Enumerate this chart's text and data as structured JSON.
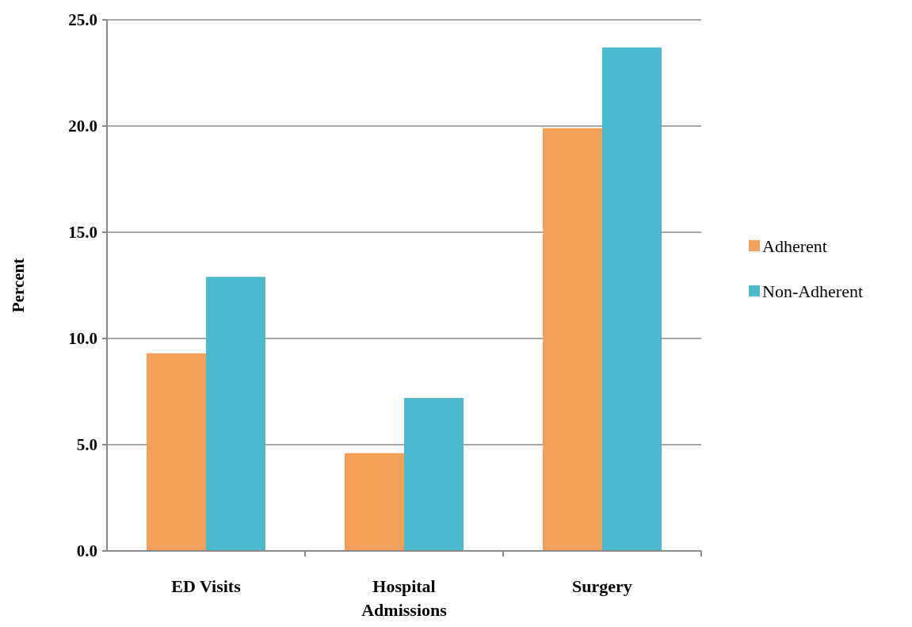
{
  "chart_data": {
    "type": "bar",
    "ylabel": "Percent",
    "categories": [
      "ED Visits",
      "Hospital Admissions",
      "Surgery"
    ],
    "series": [
      {
        "name": "Adherent",
        "color": "#f5a05a",
        "values": [
          9.3,
          4.6,
          19.9
        ]
      },
      {
        "name": "Non-Adherent",
        "color": "#4bbacc",
        "values": [
          12.9,
          7.2,
          23.7
        ]
      }
    ],
    "ylim": [
      0,
      25
    ],
    "yticks": [
      {
        "value": 0,
        "label": "0.0"
      },
      {
        "value": 5,
        "label": "5.0"
      },
      {
        "value": 10,
        "label": "10.0"
      },
      {
        "value": 15,
        "label": "15.0"
      },
      {
        "value": 20,
        "label": "20.0"
      },
      {
        "value": 25,
        "label": "25.0"
      }
    ],
    "grid": "y",
    "legend": "right"
  }
}
